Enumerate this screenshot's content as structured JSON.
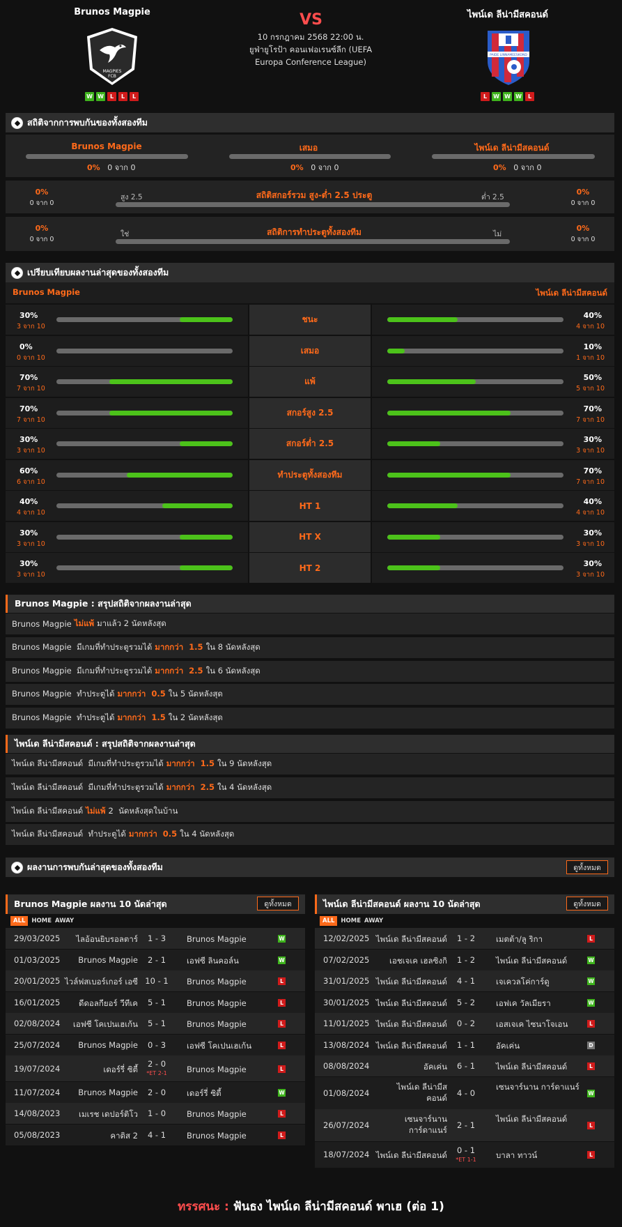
{
  "header": {
    "home_name": "Brunos Magpie",
    "away_name": "ไพน์เด ลีน่ามีสคอนด์",
    "vs": "VS",
    "date": "10 กรกฎาคม 2568 22:00 น.",
    "competition": "ยูฟ่ายูโรป้า คอนเฟอเรนซ์ลีก (UEFA Europa Conference League)",
    "home_form": [
      "W",
      "W",
      "L",
      "L",
      "L"
    ],
    "away_form": [
      "L",
      "W",
      "W",
      "W",
      "L"
    ],
    "home_logo_text": "MAGPIES FCB",
    "away_logo_text": "PAIDE LINNAMEESKOND"
  },
  "h2h": {
    "title": "สถิติจากการพบกันของทั้งสองทีม",
    "home_label": "Brunos Magpie",
    "draw_label": "เสมอ",
    "away_label": "ไพน์เด ลีน่ามีสคอนด์",
    "home_pct": "0%",
    "home_sub": "0 จาก 0",
    "draw_pct": "0%",
    "draw_sub": "0 จาก 0",
    "away_pct": "0%",
    "away_sub": "0 จาก 0",
    "ou_title": "สถิติสกอร์รวม สูง-ต่ำ 2.5 ประตู",
    "ou_left_label": "สูง 2.5",
    "ou_right_label": "ต่ำ 2.5",
    "ou_left_pct": "0%",
    "ou_left_sub": "0 จาก 0",
    "ou_right_pct": "0%",
    "ou_right_sub": "0 จาก 0",
    "btts_title": "สถิติการทำประตูทั้งสองทีม",
    "btts_left_label": "ใช่",
    "btts_right_label": "ไม่",
    "btts_left_pct": "0%",
    "btts_left_sub": "0 จาก 0",
    "btts_right_pct": "0%",
    "btts_right_sub": "0 จาก 0"
  },
  "compare": {
    "title": "เปรียบเทียบผลงานล่าสุดของทั้งสองทีม",
    "home_label": "Brunos Magpie",
    "away_label": "ไพน์เด ลีน่ามีสคอนด์",
    "rows": [
      {
        "label": "ชนะ",
        "home_pct": "30%",
        "home_sub": "3 จาก 10",
        "home_val": 0.3,
        "away_pct": "40%",
        "away_sub": "4 จาก 10",
        "away_val": 0.4
      },
      {
        "label": "เสมอ",
        "home_pct": "0%",
        "home_sub": "0 จาก 10",
        "home_val": 0.0,
        "away_pct": "10%",
        "away_sub": "1 จาก 10",
        "away_val": 0.1
      },
      {
        "label": "แพ้",
        "home_pct": "70%",
        "home_sub": "7 จาก 10",
        "home_val": 0.7,
        "away_pct": "50%",
        "away_sub": "5 จาก 10",
        "away_val": 0.5
      },
      {
        "label": "สกอร์สูง 2.5",
        "home_pct": "70%",
        "home_sub": "7 จาก 10",
        "home_val": 0.7,
        "away_pct": "70%",
        "away_sub": "7 จาก 10",
        "away_val": 0.7
      },
      {
        "label": "สกอร์ต่ำ 2.5",
        "home_pct": "30%",
        "home_sub": "3 จาก 10",
        "home_val": 0.3,
        "away_pct": "30%",
        "away_sub": "3 จาก 10",
        "away_val": 0.3
      },
      {
        "label": "ทำประตูทั้งสองทีม",
        "home_pct": "60%",
        "home_sub": "6 จาก 10",
        "home_val": 0.6,
        "away_pct": "70%",
        "away_sub": "7 จาก 10",
        "away_val": 0.7
      },
      {
        "label": "HT 1",
        "home_pct": "40%",
        "home_sub": "4 จาก 10",
        "home_val": 0.4,
        "away_pct": "40%",
        "away_sub": "4 จาก 10",
        "away_val": 0.4
      },
      {
        "label": "HT X",
        "home_pct": "30%",
        "home_sub": "3 จาก 10",
        "home_val": 0.3,
        "away_pct": "30%",
        "away_sub": "3 จาก 10",
        "away_val": 0.3
      },
      {
        "label": "HT 2",
        "home_pct": "30%",
        "home_sub": "3 จาก 10",
        "home_val": 0.3,
        "away_pct": "30%",
        "away_sub": "3 จาก 10",
        "away_val": 0.3
      }
    ]
  },
  "home_summary": {
    "title": "Brunos Magpie : สรุปสถิติจากผลงานล่าสุด",
    "lines": [
      {
        "pre": "Brunos Magpie",
        "hl": "ไม่แพ้",
        "post": "มาแล้ว 2 นัดหลังสุด"
      },
      {
        "pre": "Brunos Magpie  มีเกมที่ทำประตูรวมได้",
        "hl": "มากกว่า  1.5",
        "post": "ใน 8 นัดหลังสุด"
      },
      {
        "pre": "Brunos Magpie  มีเกมที่ทำประตูรวมได้",
        "hl": "มากกว่า  2.5",
        "post": "ใน 6 นัดหลังสุด"
      },
      {
        "pre": "Brunos Magpie  ทำประตูได้",
        "hl": "มากกว่า  0.5",
        "post": "ใน 5 นัดหลังสุด"
      },
      {
        "pre": "Brunos Magpie  ทำประตูได้",
        "hl": "มากกว่า  1.5",
        "post": "ใน 2 นัดหลังสุด"
      }
    ]
  },
  "away_summary": {
    "title": "ไพน์เด ลีน่ามีสคอนด์ : สรุปสถิติจากผลงานล่าสุด",
    "lines": [
      {
        "pre": "ไพน์เด ลีน่ามีสคอนด์  มีเกมที่ทำประตูรวมได้",
        "hl": "มากกว่า  1.5",
        "post": "ใน 9 นัดหลังสุด"
      },
      {
        "pre": "ไพน์เด ลีน่ามีสคอนด์  มีเกมที่ทำประตูรวมได้",
        "hl": "มากกว่า  2.5",
        "post": "ใน 4 นัดหลังสุด"
      },
      {
        "pre": "ไพน์เด ลีน่ามีสคอนด์",
        "hl": "ไม่แพ้",
        "post": "2  นัดหลังสุดในบ้าน"
      },
      {
        "pre": "ไพน์เด ลีน่ามีสคอนด์  ทำประตูได้",
        "hl": "มากกว่า  0.5",
        "post": "ใน 4 นัดหลังสุด"
      }
    ]
  },
  "recent": {
    "title": "ผลงานการพบกันล่าสุดของทั้งสองทีม",
    "see_all": "ดูทั้งหมด",
    "tabs": [
      "ALL",
      "HOME",
      "AWAY"
    ],
    "home_title": "Brunos Magpie ผลงาน 10 นัดล่าสุด",
    "away_title": "ไพน์เด ลีน่ามีสคอนด์ ผลงาน 10 นัดล่าสุด",
    "home_matches": [
      {
        "date": "29/03/2025",
        "home": "ไลอ้อนยิบรอลตาร์",
        "score": "1 - 3",
        "away": "Brunos Magpie",
        "res": "W"
      },
      {
        "date": "01/03/2025",
        "home": "Brunos Magpie",
        "score": "2 - 1",
        "away": "เอฟซี ลินคอล์น",
        "res": "W"
      },
      {
        "date": "20/01/2025",
        "home": "ไวล์ฟสเบอร์เกอร์ เอซี",
        "score": "10 - 1",
        "away": "Brunos Magpie",
        "res": "L"
      },
      {
        "date": "16/01/2025",
        "home": "ดีดอลกียอร์ วีทีเค",
        "score": "5 - 1",
        "away": "Brunos Magpie",
        "res": "L"
      },
      {
        "date": "02/08/2024",
        "home": "เอฟซี โคเปนเฮเก้น",
        "score": "5 - 1",
        "away": "Brunos Magpie",
        "res": "L"
      },
      {
        "date": "25/07/2024",
        "home": "Brunos Magpie",
        "score": "0 - 3",
        "away": "เอฟซี โคเปนเฮเก้น",
        "res": "L"
      },
      {
        "date": "19/07/2024",
        "home": "เดอร์รี่ ซิตี้",
        "score": "2 - 0",
        "et": "*ET 2-1",
        "away": "Brunos Magpie",
        "res": "L"
      },
      {
        "date": "11/07/2024",
        "home": "Brunos Magpie",
        "score": "2 - 0",
        "away": "เดอร์รี่ ซิตี้",
        "res": "W"
      },
      {
        "date": "14/08/2023",
        "home": "เมเรช เดปอร์ติโว",
        "score": "1 - 0",
        "away": "Brunos Magpie",
        "res": "L"
      },
      {
        "date": "05/08/2023",
        "home": "คาติส 2",
        "score": "4 - 1",
        "away": "Brunos Magpie",
        "res": "L"
      }
    ],
    "away_matches": [
      {
        "date": "12/02/2025",
        "home": "ไพน์เด ลีน่ามีสคอนด์",
        "score": "1 - 2",
        "away": "เมตต้า/ลู ริกา",
        "res": "L"
      },
      {
        "date": "07/02/2025",
        "home": "เอชเจเค เฮลซิงกิ",
        "score": "1 - 2",
        "away": "ไพน์เด ลีน่ามีสคอนด์",
        "res": "W"
      },
      {
        "date": "31/01/2025",
        "home": "ไพน์เด ลีน่ามีสคอนด์",
        "score": "4 - 1",
        "away": "เจเควลโค่การ์ดู",
        "res": "W"
      },
      {
        "date": "30/01/2025",
        "home": "ไพน์เด ลีน่ามีสคอนด์",
        "score": "5 - 2",
        "away": "เอฟเค วัลเมียรา",
        "res": "W"
      },
      {
        "date": "11/01/2025",
        "home": "ไพน์เด ลีน่ามีสคอนด์",
        "score": "0 - 2",
        "away": "เอสเจเค ไซนาโจเอน",
        "res": "L"
      },
      {
        "date": "13/08/2024",
        "home": "ไพน์เด ลีน่ามีสคอนด์",
        "score": "1 - 1",
        "away": "อัคเค่น",
        "res": "D"
      },
      {
        "date": "08/08/2024",
        "home": "อัคเค่น",
        "score": "6 - 1",
        "away": "ไพน์เด ลีน่ามีสคอนด์",
        "res": "L"
      },
      {
        "date": "01/08/2024",
        "home": "ไพน์เด ลีน่ามีสคอนด์",
        "score": "4 - 0",
        "away": "เซนจาร์นาน การ์ดาแนร์",
        "res": "W"
      },
      {
        "date": "26/07/2024",
        "home": "เซนจาร์นาน การ์ดาแนร์",
        "score": "2 - 1",
        "away": "ไพน์เด ลีน่ามีสคอนด์",
        "res": "L"
      },
      {
        "date": "18/07/2024",
        "home": "ไพน์เด ลีน่ามีสคอนด์",
        "score": "0 - 1",
        "et": "*ET 1-1",
        "away": "บาลา ทาวน์",
        "res": "L"
      }
    ]
  },
  "footer": {
    "label": "ทรรศนะ :",
    "text": "ฟันธง ไพน์เด ลีน่ามีสคอนด์ พาเฮ (ต่อ 1)"
  },
  "colors": {
    "accent": "#ff6a1a",
    "win": "#3fb41d",
    "loss": "#d11b1b",
    "draw": "#777777",
    "bar_fill": "#4cc21a"
  }
}
